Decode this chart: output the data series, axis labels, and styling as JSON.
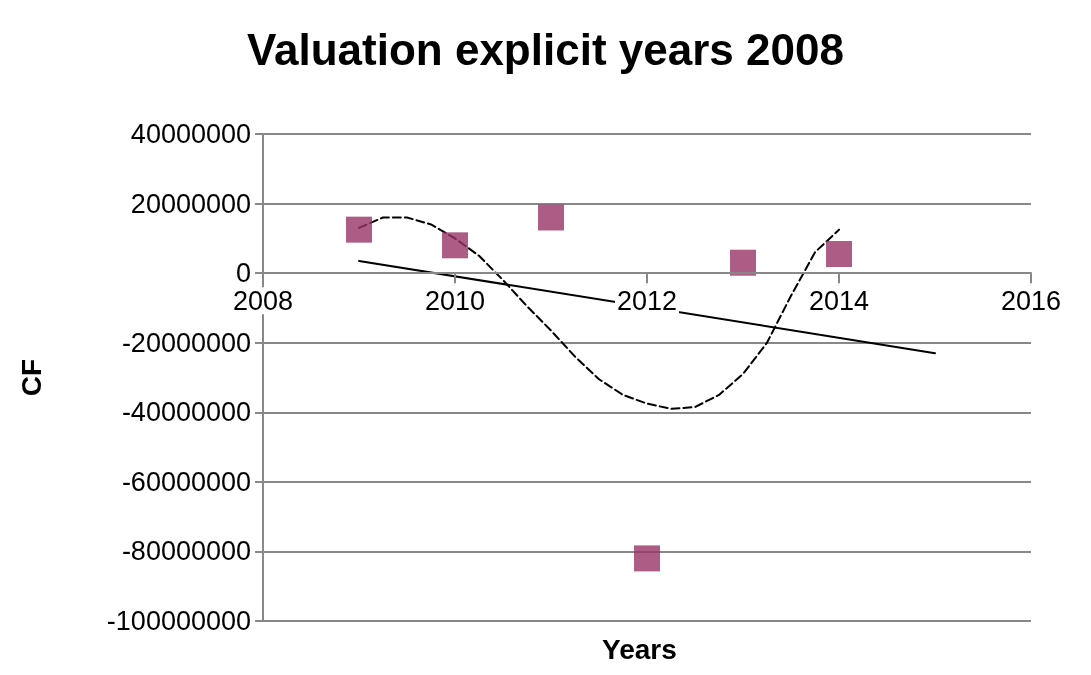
{
  "chart_data": {
    "type": "scatter",
    "title": "Valuation explicit years 2008",
    "xlabel": "Years",
    "ylabel": "CF",
    "xlim": [
      2008,
      2016
    ],
    "xticks": [
      2008,
      2010,
      2012,
      2014,
      2016
    ],
    "ylim": [
      -100000000,
      40000000
    ],
    "yticks": [
      -100000000,
      -80000000,
      -60000000,
      -40000000,
      -20000000,
      0,
      20000000,
      40000000
    ],
    "grid": "y",
    "series": [
      {
        "marker": "square",
        "color": "#993366",
        "x": [
          2009,
          2010,
          2011,
          2012,
          2013,
          2014
        ],
        "values": [
          12500000,
          8000000,
          16000000,
          -82000000,
          3000000,
          5500000
        ]
      },
      {
        "type": "line",
        "marker": "none",
        "line_style": "solid",
        "color": "#000000",
        "x": [
          2009,
          2015
        ],
        "values": [
          3500000,
          -23000000
        ]
      },
      {
        "type": "line",
        "marker": "none",
        "line_style": "dashed",
        "color": "#000000",
        "x": [
          2009,
          2009.25,
          2009.5,
          2009.75,
          2010,
          2010.25,
          2010.5,
          2010.75,
          2011,
          2011.25,
          2011.5,
          2011.75,
          2012,
          2012.25,
          2012.5,
          2012.75,
          2013,
          2013.25,
          2013.5,
          2013.75,
          2014
        ],
        "values": [
          13000000,
          16000000,
          16000000,
          14000000,
          10000000,
          5000000,
          -2000000,
          -9500000,
          -16500000,
          -24000000,
          -30500000,
          -35000000,
          -37500000,
          -39000000,
          -38500000,
          -35000000,
          -29000000,
          -20000000,
          -6500000,
          6000000,
          12500000
        ]
      }
    ]
  }
}
